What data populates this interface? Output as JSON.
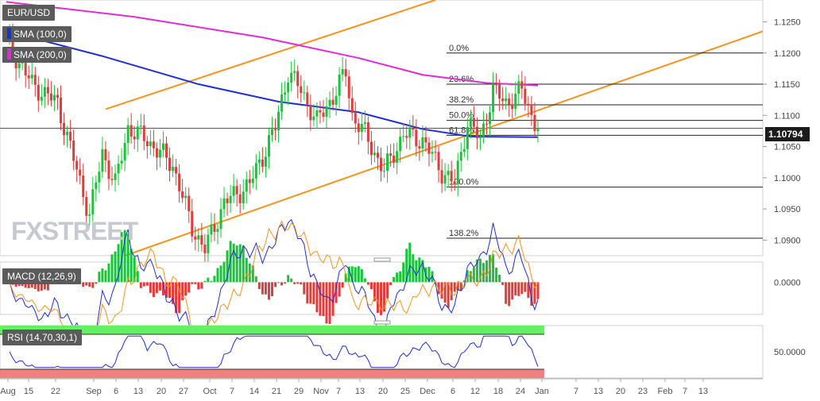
{
  "symbol": "EUR/USD",
  "logo": "FXSTREET",
  "colors": {
    "bull": "#19c43b",
    "bear": "#e03c3c",
    "sma100": "#1f2fd6",
    "sma200": "#e02bd9",
    "channel": "#f7931e",
    "macd_line": "#1f2fd6",
    "signal_line": "#f7931e",
    "rsi_line": "#1f2fd6",
    "overbought": "#66ee66",
    "oversold": "#f08080"
  },
  "chart_data": {
    "type": "candlestick",
    "title": "EUR/USD",
    "x_ticks": [
      "Aug",
      "15",
      "22",
      "Sep",
      "6",
      "13",
      "20",
      "27",
      "Oct",
      "7",
      "14",
      "21",
      "29",
      "Nov",
      "7",
      "13",
      "20",
      "25",
      "Dec",
      "6",
      "12",
      "18",
      "24",
      "Jan",
      "7",
      "13",
      "20",
      "23",
      "Feb",
      "7",
      "13"
    ],
    "price_axis": {
      "ticks": [
        "1.1250",
        "1.1200",
        "1.1150",
        "1.1100",
        "1.1050",
        "1.1000",
        "1.0950",
        "1.0900"
      ],
      "range": [
        1.0875,
        1.1285
      ],
      "current_price": "1.10794",
      "current_value": 1.10794
    },
    "indicators": {
      "sma100": "SMA (100,0)",
      "sma200": "SMA (200,0)",
      "macd": "MACD (12,26,9)",
      "rsi": "RSI (14,70,30,1)"
    },
    "fibonacci": {
      "high": 1.12,
      "low": 1.0985,
      "levels": [
        {
          "label": "0.0%",
          "value": 1.12
        },
        {
          "label": "23.6%",
          "value": 1.115
        },
        {
          "label": "38.2%",
          "value": 1.1117
        },
        {
          "label": "50.0%",
          "value": 1.1092
        },
        {
          "label": "61.8%",
          "value": 1.1068
        },
        {
          "label": "100.0%",
          "value": 1.0985
        },
        {
          "label": "138.2%",
          "value": 1.0903
        }
      ]
    },
    "channel": {
      "upper": [
        {
          "i": 31,
          "v": 1.111
        },
        {
          "i": 134,
          "v": 1.1285
        }
      ],
      "lower": [
        {
          "i": 37,
          "v": 1.0875
        },
        {
          "i": 166,
          "v": 1.1108
        }
      ]
    },
    "macd_axis": {
      "ticks": [
        "0.0000"
      ],
      "range": [
        -0.0048,
        0.003
      ]
    },
    "rsi_axis": {
      "ticks": [
        "50.0000"
      ],
      "range": [
        20,
        80
      ]
    }
  }
}
